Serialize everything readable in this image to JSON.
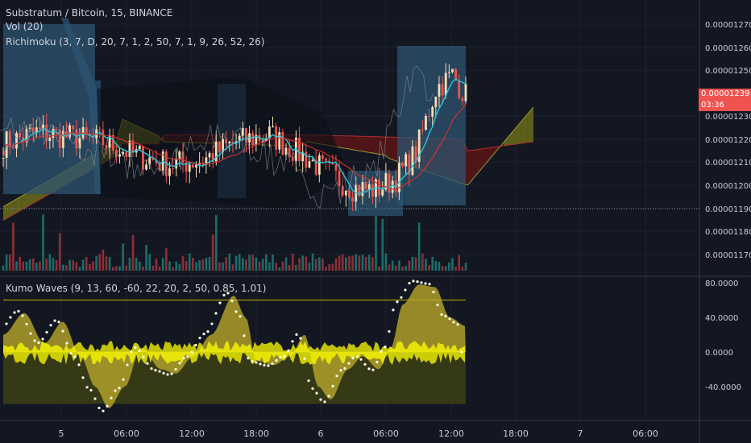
{
  "legend": {
    "symbol_line": "Substratum / Bitcoin, 15, BINANCE",
    "vol_line": "Vol (20)",
    "ichimoku_line": "Richimoku (3, 7, D, 20, 7, 1, 2, 50, 7, 1, 9, 26, 52, 26)",
    "kumo_line": "Kumo Waves (9, 13, 60, -60, 22, 20, 2, 50, 0.85, 1.01)"
  },
  "price_axis": {
    "ticks": [
      "0.00001270",
      "0.00001260",
      "0.00001250",
      "0.00001230",
      "0.00001220",
      "0.00001210",
      "0.00001200",
      "0.00001190",
      "0.00001180",
      "0.00001170"
    ],
    "last_price": "0.00001239",
    "countdown": "03:36",
    "last_price_color": "#ef5350"
  },
  "osc_axis": {
    "ticks": [
      "80.0000",
      "40.0000",
      "0.0000",
      "-40.0000"
    ]
  },
  "time_axis": {
    "ticks": [
      "5",
      "06:00",
      "12:00",
      "18:00",
      "6",
      "06:00",
      "12:00",
      "18:00",
      "7",
      "06:00"
    ]
  },
  "colors": {
    "background": "#131722",
    "up_candle": "#f5deb3",
    "down_candle": "#ef5350",
    "cloud_bull": "#6b6b1a",
    "cloud_bear": "#5a1515",
    "channel": "#2e5470",
    "kumo_fill": "#b8a62a",
    "wave_yellow": "#ffff00",
    "tenkan": "#26c6da",
    "kijun": "#d32f2f"
  },
  "chart_data": [
    {
      "type": "candlestick",
      "ylim": [
        1.16e-05,
        1.28e-05
      ],
      "series": [
        {
          "name": "Vol",
          "type": "bar"
        }
      ],
      "close_approx": [
        1.22e-05,
        1.23e-05,
        1.21e-05,
        1.22e-05,
        1.24e-05,
        1.21e-05,
        1.2e-05,
        1.21e-05,
        1.24e-05,
        1.23e-05,
        1.21e-05,
        1.2e-05,
        1.21e-05,
        1.19e-05,
        1.2e-05,
        1.21e-05,
        1.22e-05,
        1.25e-05,
        1.25e-05,
        1.239e-05
      ]
    },
    {
      "type": "area",
      "ylim": [
        -70,
        90
      ],
      "levels": [
        60,
        -60
      ]
    }
  ]
}
